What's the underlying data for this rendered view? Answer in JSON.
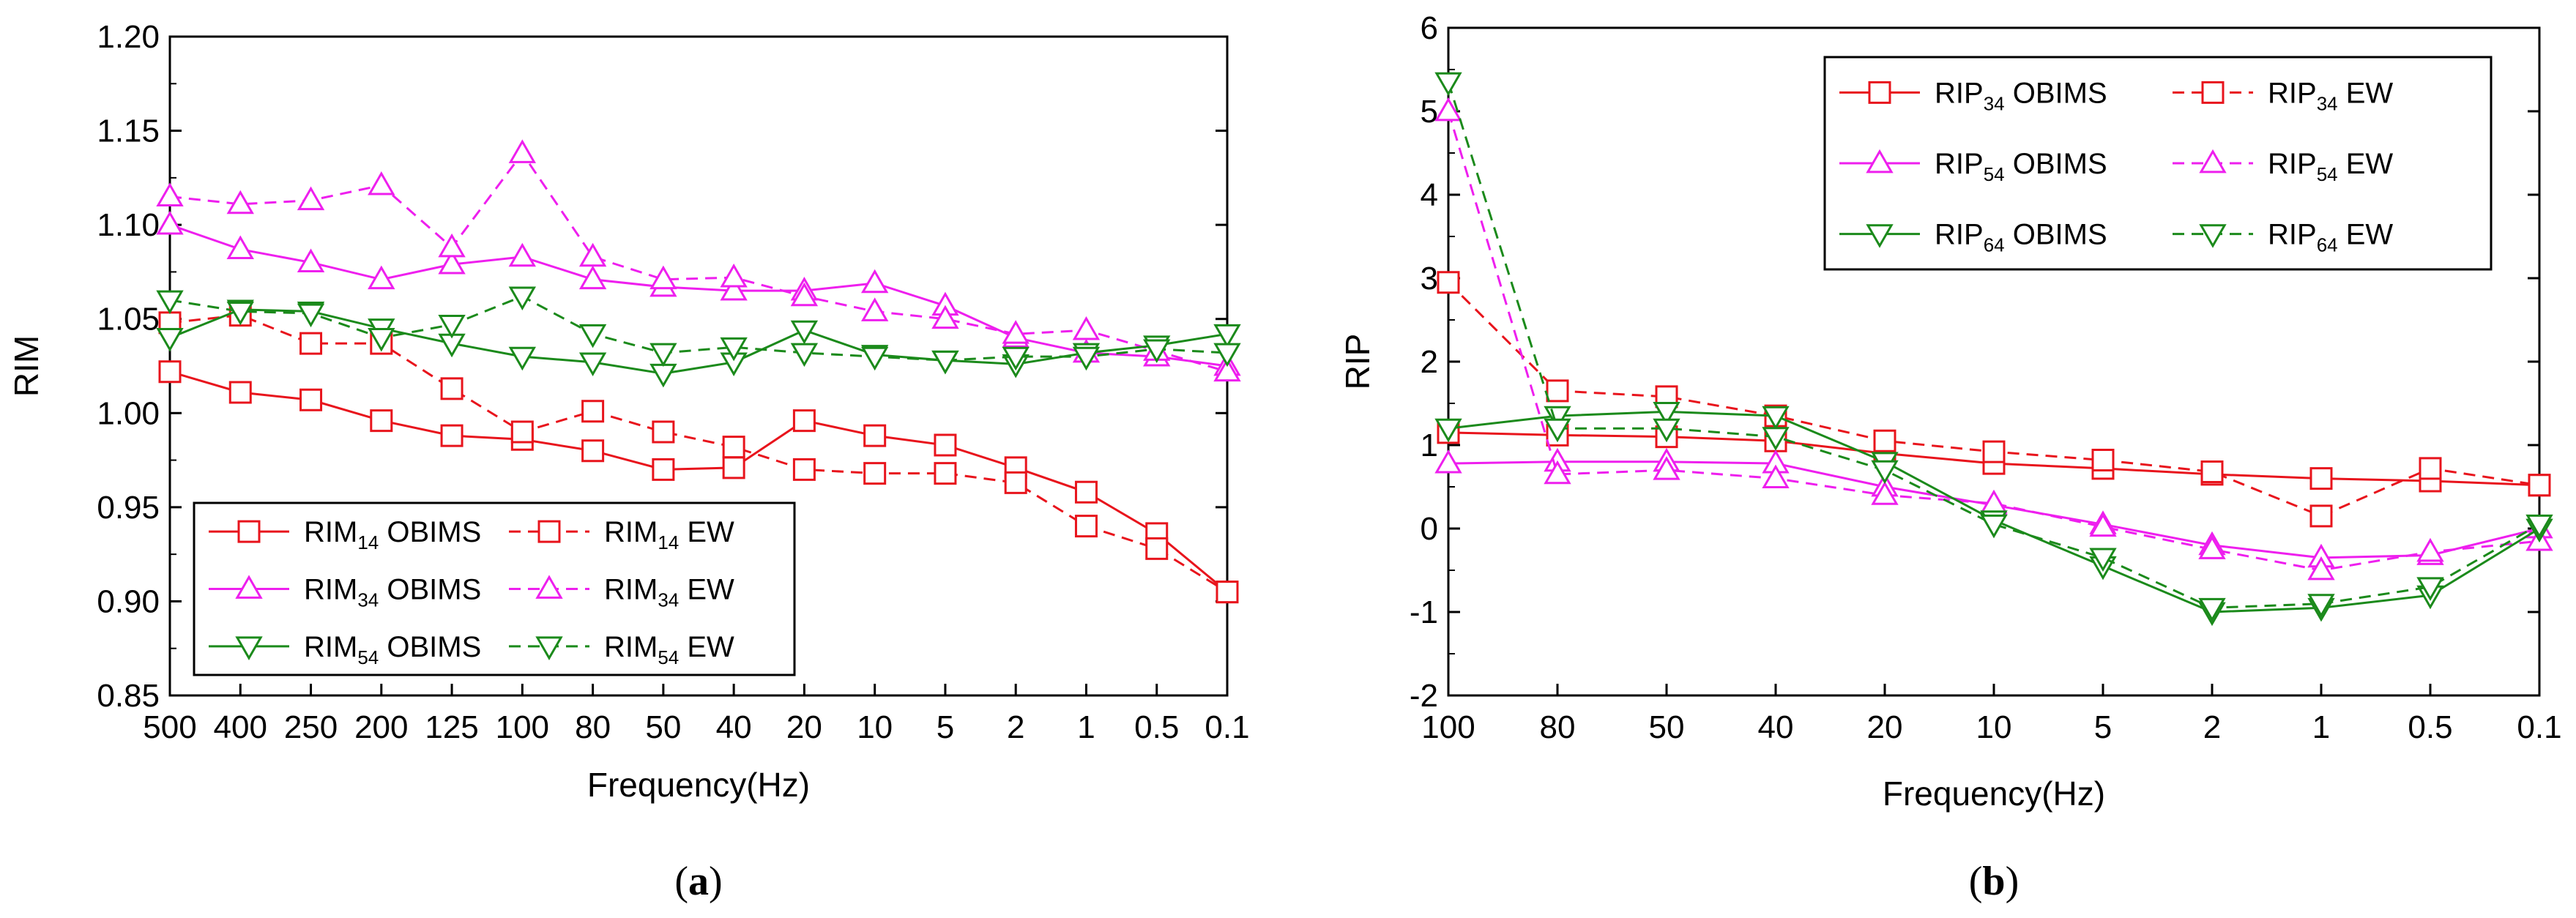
{
  "colors": {
    "red": "#e8141c",
    "magenta": "#ee1fee",
    "green": "#1b8a1b"
  },
  "chart_data": [
    {
      "type": "line",
      "panel": "a",
      "caption": {
        "open": "(",
        "letter": "a",
        "close": ")"
      },
      "xlabel": "Frequency(Hz)",
      "ylabel": "RIM",
      "categories": [
        "500",
        "400",
        "250",
        "200",
        "125",
        "100",
        "80",
        "50",
        "40",
        "20",
        "10",
        "5",
        "2",
        "1",
        "0.5",
        "0.1"
      ],
      "ylim": [
        0.85,
        1.2
      ],
      "yticks": [
        "0.85",
        "0.90",
        "0.95",
        "1.00",
        "1.05",
        "1.10",
        "1.15",
        "1.20"
      ],
      "series": [
        {
          "name": "RIM14 OBIMS",
          "base": "RIM",
          "sub": "14",
          "suffix": "OBIMS",
          "color": "red",
          "marker": "square",
          "dash": false,
          "values": [
            1.022,
            1.011,
            1.007,
            0.996,
            0.988,
            0.986,
            0.98,
            0.97,
            0.971,
            0.996,
            0.988,
            0.983,
            0.971,
            0.958,
            0.936,
            0.905
          ]
        },
        {
          "name": "RIM14 EW",
          "base": "RIM",
          "sub": "14",
          "suffix": "EW",
          "color": "red",
          "marker": "square",
          "dash": true,
          "values": [
            1.048,
            1.052,
            1.037,
            1.037,
            1.013,
            0.99,
            1.001,
            0.99,
            0.982,
            0.97,
            0.968,
            0.968,
            0.963,
            0.94,
            0.928,
            0.905
          ]
        },
        {
          "name": "RIM34 OBIMS",
          "base": "RIM",
          "sub": "34",
          "suffix": "OBIMS",
          "color": "magenta",
          "marker": "triangle-up",
          "dash": false,
          "values": [
            1.1,
            1.087,
            1.08,
            1.071,
            1.079,
            1.083,
            1.071,
            1.067,
            1.065,
            1.065,
            1.069,
            1.057,
            1.04,
            1.032,
            1.03,
            1.025
          ]
        },
        {
          "name": "RIM34 EW",
          "base": "RIM",
          "sub": "34",
          "suffix": "EW",
          "color": "magenta",
          "marker": "triangle-up",
          "dash": true,
          "values": [
            1.115,
            1.111,
            1.113,
            1.121,
            1.088,
            1.138,
            1.083,
            1.071,
            1.072,
            1.062,
            1.054,
            1.05,
            1.042,
            1.044,
            1.033,
            1.022
          ]
        },
        {
          "name": "RIM54 OBIMS",
          "base": "RIM",
          "sub": "54",
          "suffix": "OBIMS",
          "color": "green",
          "marker": "triangle-down",
          "dash": false,
          "values": [
            1.04,
            1.055,
            1.054,
            1.045,
            1.037,
            1.03,
            1.027,
            1.021,
            1.027,
            1.044,
            1.031,
            1.028,
            1.026,
            1.032,
            1.036,
            1.042
          ]
        },
        {
          "name": "RIM54 EW",
          "base": "RIM",
          "sub": "54",
          "suffix": "EW",
          "color": "green",
          "marker": "triangle-down",
          "dash": true,
          "values": [
            1.06,
            1.054,
            1.053,
            1.04,
            1.047,
            1.062,
            1.042,
            1.032,
            1.035,
            1.032,
            1.03,
            1.028,
            1.03,
            1.03,
            1.034,
            1.032
          ]
        }
      ]
    },
    {
      "type": "line",
      "panel": "b",
      "caption": {
        "open": "(",
        "letter": "b",
        "close": ")"
      },
      "xlabel": "Frequency(Hz)",
      "ylabel": "RIP",
      "categories": [
        "100",
        "80",
        "50",
        "40",
        "20",
        "10",
        "5",
        "2",
        "1",
        "0.5",
        "0.1"
      ],
      "ylim": [
        -2,
        6
      ],
      "yticks": [
        "-2",
        "-1",
        "0",
        "1",
        "2",
        "3",
        "4",
        "5",
        "6"
      ],
      "series": [
        {
          "name": "RIP34 OBIMS",
          "base": "RIP",
          "sub": "34",
          "suffix": "OBIMS",
          "color": "red",
          "marker": "square",
          "dash": false,
          "values": [
            1.15,
            1.12,
            1.1,
            1.05,
            0.9,
            0.78,
            0.72,
            0.65,
            0.6,
            0.57,
            0.52
          ]
        },
        {
          "name": "RIP34 EW",
          "base": "RIP",
          "sub": "34",
          "suffix": "EW",
          "color": "red",
          "marker": "square",
          "dash": true,
          "values": [
            2.95,
            1.65,
            1.58,
            1.35,
            1.05,
            0.92,
            0.82,
            0.68,
            0.15,
            0.72,
            0.52
          ]
        },
        {
          "name": "RIP54 OBIMS",
          "base": "RIP",
          "sub": "54",
          "suffix": "OBIMS",
          "color": "magenta",
          "marker": "triangle-up",
          "dash": false,
          "values": [
            0.78,
            0.8,
            0.8,
            0.78,
            0.5,
            0.28,
            0.05,
            -0.2,
            -0.35,
            -0.32,
            0.0
          ]
        },
        {
          "name": "RIP54 EW",
          "base": "RIP",
          "sub": "54",
          "suffix": "EW",
          "color": "magenta",
          "marker": "triangle-up",
          "dash": true,
          "values": [
            5.0,
            0.65,
            0.7,
            0.6,
            0.4,
            0.3,
            0.02,
            -0.25,
            -0.5,
            -0.28,
            -0.15
          ]
        },
        {
          "name": "RIP64 OBIMS",
          "base": "RIP",
          "sub": "64",
          "suffix": "OBIMS",
          "color": "green",
          "marker": "triangle-down",
          "dash": false,
          "values": [
            1.2,
            1.35,
            1.4,
            1.35,
            0.8,
            0.1,
            -0.45,
            -1.0,
            -0.95,
            -0.8,
            0.0
          ]
        },
        {
          "name": "RIP64 EW",
          "base": "RIP",
          "sub": "64",
          "suffix": "EW",
          "color": "green",
          "marker": "triangle-down",
          "dash": true,
          "values": [
            5.35,
            1.2,
            1.2,
            1.1,
            0.7,
            0.05,
            -0.35,
            -0.95,
            -0.9,
            -0.7,
            0.05
          ]
        }
      ]
    }
  ]
}
